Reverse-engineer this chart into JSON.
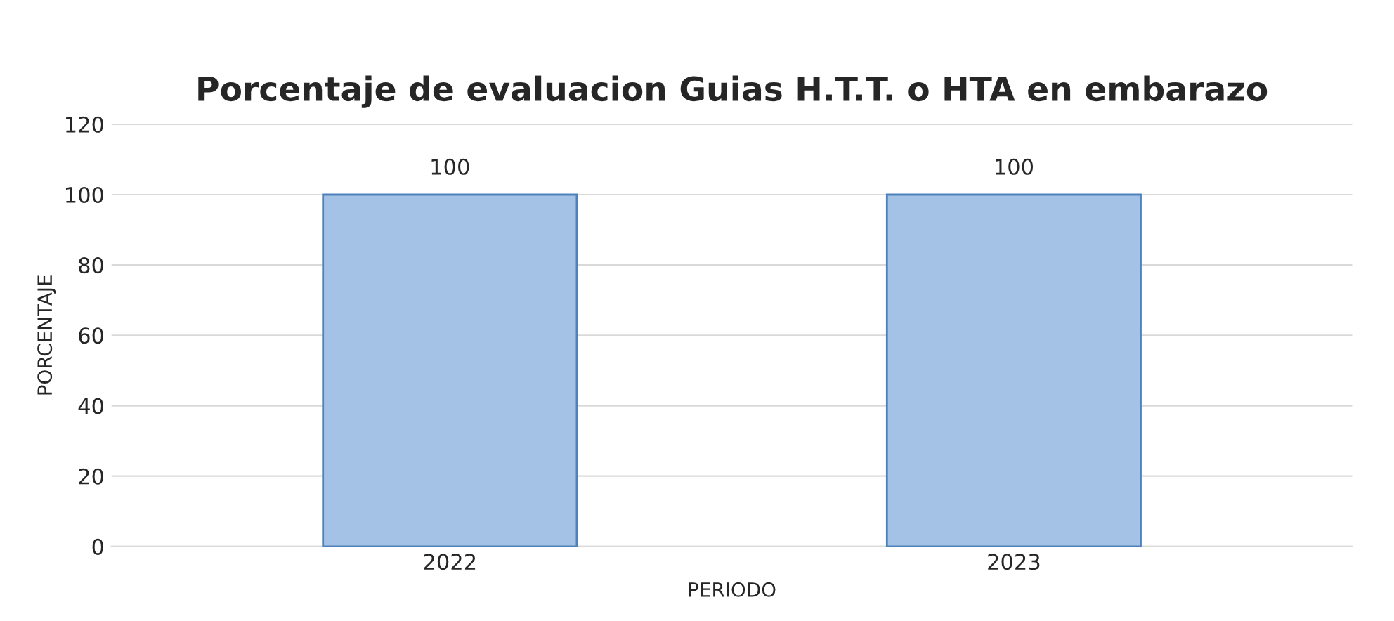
{
  "chart_data": {
    "type": "bar",
    "title": "Porcentaje de evaluacion Guias H.T.T. o HTA en embarazo",
    "xlabel": "PERIODO",
    "ylabel": "PORCENTAJE",
    "categories": [
      "2022",
      "2023"
    ],
    "series": [
      {
        "color": "#a4c2e6",
        "values": [
          100,
          100
        ]
      }
    ],
    "ylim": [
      0,
      120
    ],
    "yticks": [
      0,
      20,
      40,
      60,
      80,
      100,
      120
    ],
    "grid": "y",
    "data_labels": true
  }
}
